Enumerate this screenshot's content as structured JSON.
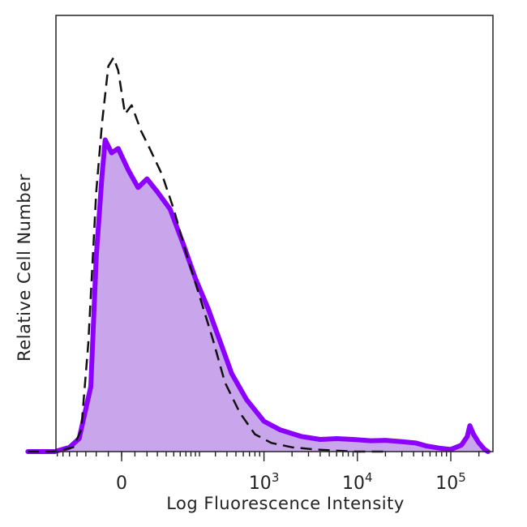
{
  "chart_data": {
    "type": "area",
    "title": "",
    "xlabel": "Log Fluorescence Intensity",
    "ylabel": "Relative Cell Number",
    "x_scale": "biexponential",
    "xlim": [
      -300,
      250000
    ],
    "ylim": [
      0,
      100
    ],
    "grid": false,
    "legend": "none",
    "x_ticks": [
      {
        "value": 0,
        "base": "0",
        "exp": ""
      },
      {
        "value": 1000,
        "base": "10",
        "exp": "3"
      },
      {
        "value": 10000,
        "base": "10",
        "exp": "4"
      },
      {
        "value": 100000,
        "base": "10",
        "exp": "5"
      }
    ],
    "series": [
      {
        "style": "filled-solid",
        "color": "#8b00ff",
        "fill": "#c9a6ec",
        "x": [
          -300,
          -150,
          -100,
          -75,
          -50,
          -40,
          -30,
          -25,
          -15,
          -5,
          10,
          25,
          40,
          60,
          90,
          130,
          180,
          250,
          330,
          450,
          650,
          1000,
          1500,
          2500,
          4000,
          6000,
          9000,
          14000,
          20000,
          30000,
          42000,
          55000,
          75000,
          100000,
          130000,
          150000,
          160000,
          175000,
          200000,
          230000,
          250000
        ],
        "y": [
          0,
          0,
          1,
          3,
          15,
          45,
          64,
          72,
          69,
          70,
          65,
          61,
          63,
          60,
          56,
          48,
          40,
          33,
          26,
          18,
          12,
          7,
          5,
          3.5,
          2.8,
          3,
          2.8,
          2.5,
          2.6,
          2.3,
          2,
          1.3,
          0.8,
          0.5,
          1.5,
          3.5,
          6,
          4,
          2,
          0.5,
          0
        ]
      },
      {
        "style": "dashed",
        "color": "#111111",
        "x": [
          -300,
          -150,
          -90,
          -70,
          -55,
          -40,
          -30,
          -20,
          -12,
          -5,
          5,
          15,
          30,
          45,
          70,
          100,
          140,
          200,
          280,
          380,
          550,
          800,
          1200,
          2000,
          3500,
          6000,
          10000,
          20000
        ],
        "y": [
          0,
          0,
          1,
          5,
          25,
          60,
          76,
          89,
          91,
          88,
          78,
          80,
          74,
          70,
          64,
          56,
          46,
          36,
          26,
          16,
          9,
          4,
          2,
          1,
          0.5,
          0.2,
          0,
          0
        ]
      }
    ]
  }
}
